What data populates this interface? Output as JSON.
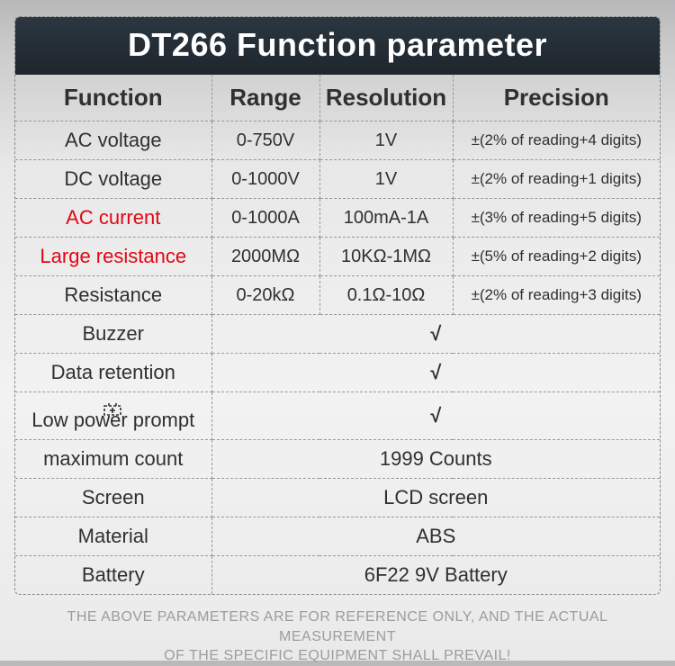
{
  "title": "DT266 Function parameter",
  "headers": {
    "c1": "Function",
    "c2": "Range",
    "c3": "Resolution",
    "c4": "Precision"
  },
  "rows_full": [
    {
      "func": "AC voltage",
      "range": "0-750V",
      "reso": "1V",
      "prec": "±(2% of reading+4 digits)",
      "highlight": false
    },
    {
      "func": "DC voltage",
      "range": "0-1000V",
      "reso": "1V",
      "prec": "±(2% of reading+1 digits)",
      "highlight": false
    },
    {
      "func": "AC current",
      "range": "0-1000A",
      "reso": "100mA-1A",
      "prec": "±(3% of reading+5 digits)",
      "highlight": true
    },
    {
      "func": "Large resistance",
      "range": "2000MΩ",
      "reso": "10KΩ-1MΩ",
      "prec": "±(5% of reading+2 digits)",
      "highlight": true
    },
    {
      "func": "Resistance",
      "range": "0-20kΩ",
      "reso": "0.1Ω-10Ω",
      "prec": "±(2% of reading+3 digits)",
      "highlight": false
    }
  ],
  "rows_check": [
    {
      "func": "Buzzer",
      "value": "√",
      "icon": false
    },
    {
      "func": "Data retention",
      "value": "√",
      "icon": false
    },
    {
      "func": "Low power prompt",
      "value": "√",
      "icon": true
    }
  ],
  "rows_info": [
    {
      "func": "maximum count",
      "value": "1999 Counts"
    },
    {
      "func": "Screen",
      "value": "LCD screen"
    },
    {
      "func": "Material",
      "value": "ABS"
    },
    {
      "func": "Battery",
      "value": "6F22  9V Battery"
    }
  ],
  "footer_line1": "THE ABOVE PARAMETERS ARE FOR REFERENCE ONLY, AND THE ACTUAL MEASUREMENT",
  "footer_line2": "OF THE SPECIFIC EQUIPMENT SHALL PREVAIL!",
  "colors": {
    "title_bg": "#222b33",
    "title_fg": "#ffffff",
    "border": "#999999",
    "text": "#303030",
    "highlight": "#e30613",
    "footer": "#9c9c9c"
  }
}
